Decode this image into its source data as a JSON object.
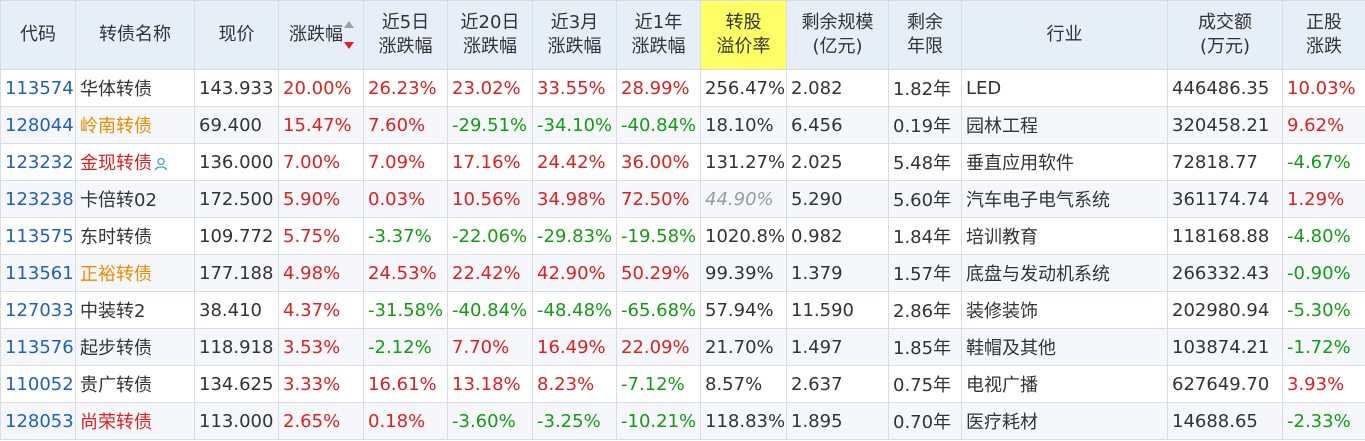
{
  "table": {
    "headers": [
      {
        "key": "code",
        "l1": "代码",
        "l2": ""
      },
      {
        "key": "name",
        "l1": "转债名称",
        "l2": ""
      },
      {
        "key": "price",
        "l1": "现价",
        "l2": ""
      },
      {
        "key": "chg",
        "l1": "涨跌幅",
        "l2": ""
      },
      {
        "key": "d5",
        "l1": "近5日",
        "l2": "涨跌幅"
      },
      {
        "key": "d20",
        "l1": "近20日",
        "l2": "涨跌幅"
      },
      {
        "key": "m3",
        "l1": "近3月",
        "l2": "涨跌幅"
      },
      {
        "key": "y1",
        "l1": "近1年",
        "l2": "涨跌幅"
      },
      {
        "key": "premium",
        "l1": "转股",
        "l2": "溢价率"
      },
      {
        "key": "scale",
        "l1": "剩余规模",
        "l2": "(亿元)"
      },
      {
        "key": "years",
        "l1": "剩余",
        "l2": "年限"
      },
      {
        "key": "industry",
        "l1": "行业",
        "l2": ""
      },
      {
        "key": "volume",
        "l1": "成交额",
        "l2": "(万元)"
      },
      {
        "key": "stock_chg",
        "l1": "正股",
        "l2": "涨跌"
      }
    ],
    "rows": [
      {
        "code": "113574",
        "name": "华体转债",
        "name_color": "default",
        "price": "143.933",
        "chg": "20.00%",
        "d5": "26.23%",
        "d20": "23.02%",
        "m3": "33.55%",
        "y1": "28.99%",
        "premium": "256.47%",
        "premium_style": "normal",
        "scale": "2.082",
        "years": "1.82年",
        "industry": "LED",
        "volume": "446486.35",
        "stock_chg": "10.03%"
      },
      {
        "code": "128044",
        "name": "岭南转债",
        "name_color": "orange",
        "price": "69.400",
        "chg": "15.47%",
        "d5": "7.60%",
        "d20": "-29.51%",
        "m3": "-34.10%",
        "y1": "-40.84%",
        "premium": "18.10%",
        "premium_style": "normal",
        "scale": "6.456",
        "years": "0.19年",
        "industry": "园林工程",
        "volume": "320458.21",
        "stock_chg": "9.62%"
      },
      {
        "code": "123232",
        "name": "金现转债",
        "name_color": "red",
        "has_icon": true,
        "price": "136.000",
        "chg": "7.00%",
        "d5": "7.09%",
        "d20": "17.16%",
        "m3": "24.42%",
        "y1": "36.00%",
        "premium": "131.27%",
        "premium_style": "normal",
        "scale": "2.025",
        "years": "5.48年",
        "industry": "垂直应用软件",
        "volume": "72818.77",
        "stock_chg": "-4.67%"
      },
      {
        "code": "123238",
        "name": "卡倍转02",
        "name_color": "default",
        "price": "172.500",
        "chg": "5.90%",
        "d5": "0.03%",
        "d20": "10.56%",
        "m3": "34.98%",
        "y1": "72.50%",
        "premium": "44.90%",
        "premium_style": "gray",
        "scale": "5.290",
        "years": "5.60年",
        "industry": "汽车电子电气系统",
        "volume": "361174.74",
        "stock_chg": "1.29%"
      },
      {
        "code": "113575",
        "name": "东时转债",
        "name_color": "default",
        "price": "109.772",
        "chg": "5.75%",
        "d5": "-3.37%",
        "d20": "-22.06%",
        "m3": "-29.83%",
        "y1": "-19.58%",
        "premium": "1020.8%",
        "premium_style": "normal",
        "scale": "0.982",
        "years": "1.84年",
        "industry": "培训教育",
        "volume": "118168.88",
        "stock_chg": "-4.80%"
      },
      {
        "code": "113561",
        "name": "正裕转债",
        "name_color": "orange",
        "price": "177.188",
        "chg": "4.98%",
        "d5": "24.53%",
        "d20": "22.42%",
        "m3": "42.90%",
        "y1": "50.29%",
        "premium": "99.39%",
        "premium_style": "normal",
        "scale": "1.379",
        "years": "1.57年",
        "industry": "底盘与发动机系统",
        "volume": "266332.43",
        "stock_chg": "-0.90%"
      },
      {
        "code": "127033",
        "name": "中装转2",
        "name_color": "default",
        "price": "38.410",
        "chg": "4.37%",
        "d5": "-31.58%",
        "d20": "-40.84%",
        "m3": "-48.48%",
        "y1": "-65.68%",
        "premium": "57.94%",
        "premium_style": "normal",
        "scale": "11.590",
        "years": "2.86年",
        "industry": "装修装饰",
        "volume": "202980.94",
        "stock_chg": "-5.30%"
      },
      {
        "code": "113576",
        "name": "起步转债",
        "name_color": "default",
        "price": "118.918",
        "chg": "3.53%",
        "d5": "-2.12%",
        "d20": "7.70%",
        "m3": "16.49%",
        "y1": "22.09%",
        "premium": "21.70%",
        "premium_style": "normal",
        "scale": "1.497",
        "years": "1.85年",
        "industry": "鞋帽及其他",
        "volume": "103874.21",
        "stock_chg": "-1.72%"
      },
      {
        "code": "110052",
        "name": "贵广转债",
        "name_color": "default",
        "price": "134.625",
        "chg": "3.33%",
        "d5": "16.61%",
        "d20": "13.18%",
        "m3": "8.23%",
        "y1": "-7.12%",
        "premium": "8.57%",
        "premium_style": "normal",
        "scale": "2.637",
        "years": "0.75年",
        "industry": "电视广播",
        "volume": "627649.70",
        "stock_chg": "3.93%"
      },
      {
        "code": "128053",
        "name": "尚荣转债",
        "name_color": "red",
        "price": "113.000",
        "chg": "2.65%",
        "d5": "0.18%",
        "d20": "-3.60%",
        "m3": "-3.25%",
        "y1": "-10.21%",
        "premium": "118.83%",
        "premium_style": "normal",
        "scale": "1.895",
        "years": "0.70年",
        "industry": "医疗耗材",
        "volume": "14688.65",
        "stock_chg": "-2.33%"
      }
    ]
  },
  "colors": {
    "header_bg": "#e6eef7",
    "highlight_header": "#ffff66",
    "up": "#e02020",
    "down": "#139c13",
    "code": "#1f5fbf",
    "orange_name": "#f08a00"
  },
  "icons": {
    "sort": "sort-desc-icon",
    "person": "person-icon"
  }
}
